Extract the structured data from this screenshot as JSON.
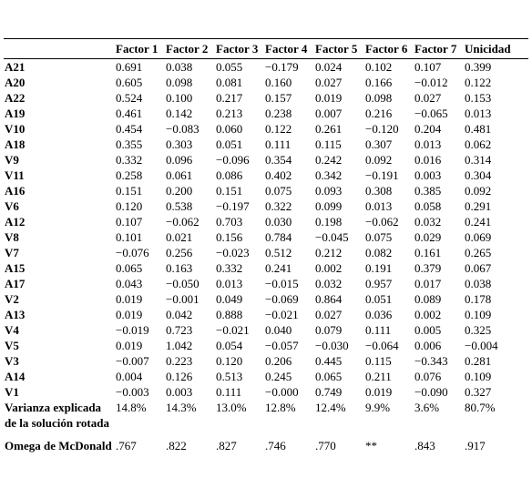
{
  "table": {
    "header": [
      "",
      "Factor 1",
      "Factor 2",
      "Factor 3",
      "Factor 4",
      "Factor 5",
      "Factor 6",
      "Factor 7",
      "Unicidad"
    ],
    "rows": [
      [
        "A21",
        "0.691",
        "0.038",
        "0.055",
        "−0.179",
        "0.024",
        "0.102",
        "0.107",
        "0.399"
      ],
      [
        "A20",
        "0.605",
        "0.098",
        "0.081",
        "0.160",
        "0.027",
        "0.166",
        "−0.012",
        "0.122"
      ],
      [
        "A22",
        "0.524",
        "0.100",
        "0.217",
        "0.157",
        "0.019",
        "0.098",
        "0.027",
        "0.153"
      ],
      [
        "A19",
        "0.461",
        "0.142",
        "0.213",
        "0.238",
        "0.007",
        "0.216",
        "−0.065",
        "0.013"
      ],
      [
        "V10",
        "0.454",
        "−0.083",
        "0.060",
        "0.122",
        "0.261",
        "−0.120",
        "0.204",
        "0.481"
      ],
      [
        "A18",
        "0.355",
        "0.303",
        "0.051",
        "0.111",
        "0.115",
        "0.307",
        "0.013",
        "0.062"
      ],
      [
        "V9",
        "0.332",
        "0.096",
        "−0.096",
        "0.354",
        "0.242",
        "0.092",
        "0.016",
        "0.314"
      ],
      [
        "V11",
        "0.258",
        "0.061",
        "0.086",
        "0.402",
        "0.342",
        "−0.191",
        "0.003",
        "0.304"
      ],
      [
        "A16",
        "0.151",
        "0.200",
        "0.151",
        "0.075",
        "0.093",
        "0.308",
        "0.385",
        "0.092"
      ],
      [
        "V6",
        "0.120",
        "0.538",
        "−0.197",
        "0.322",
        "0.099",
        "0.013",
        "0.058",
        "0.291"
      ],
      [
        "A12",
        "0.107",
        "−0.062",
        "0.703",
        "0.030",
        "0.198",
        "−0.062",
        "0.032",
        "0.241"
      ],
      [
        "V8",
        "0.101",
        "0.021",
        "0.156",
        "0.784",
        "−0.045",
        "0.075",
        "0.029",
        "0.069"
      ],
      [
        "V7",
        "−0.076",
        "0.256",
        "−0.023",
        "0.512",
        "0.212",
        "0.082",
        "0.161",
        "0.265"
      ],
      [
        "A15",
        "0.065",
        "0.163",
        "0.332",
        "0.241",
        "0.002",
        "0.191",
        "0.379",
        "0.067"
      ],
      [
        "A17",
        "0.043",
        "−0.050",
        "0.013",
        "−0.015",
        "0.032",
        "0.957",
        "0.017",
        "0.038"
      ],
      [
        "V2",
        "0.019",
        "−0.001",
        "0.049",
        "−0.069",
        "0.864",
        "0.051",
        "0.089",
        "0.178"
      ],
      [
        "A13",
        "0.019",
        "0.042",
        "0.888",
        "−0.021",
        "0.027",
        "0.036",
        "0.002",
        "0.109"
      ],
      [
        "V4",
        "−0.019",
        "0.723",
        "−0.021",
        "0.040",
        "0.079",
        "0.111",
        "0.005",
        "0.325"
      ],
      [
        "V5",
        "0.019",
        "1.042",
        "0.054",
        "−0.057",
        "−0.030",
        "−0.064",
        "0.006",
        "−0.004"
      ],
      [
        "V3",
        "−0.007",
        "0.223",
        "0.120",
        "0.206",
        "0.445",
        "0.115",
        "−0.343",
        "0.281"
      ],
      [
        "A14",
        "0.004",
        "0.126",
        "0.513",
        "0.245",
        "0.065",
        "0.211",
        "0.076",
        "0.109"
      ],
      [
        "V1",
        "−0.003",
        "0.003",
        "0.111",
        "−0.000",
        "0.749",
        "0.019",
        "−0.090",
        "0.327"
      ],
      [
        "Varianza explicada de la solución rotada",
        "14.8%",
        "14.3%",
        "13.0%",
        "12.8%",
        "12.4%",
        "9.9%",
        "3.6%",
        "80.7%"
      ],
      [
        "Omega de McDonald",
        ".767",
        ".822",
        ".827",
        ".746",
        ".770",
        "**",
        ".843",
        ".917"
      ]
    ]
  }
}
